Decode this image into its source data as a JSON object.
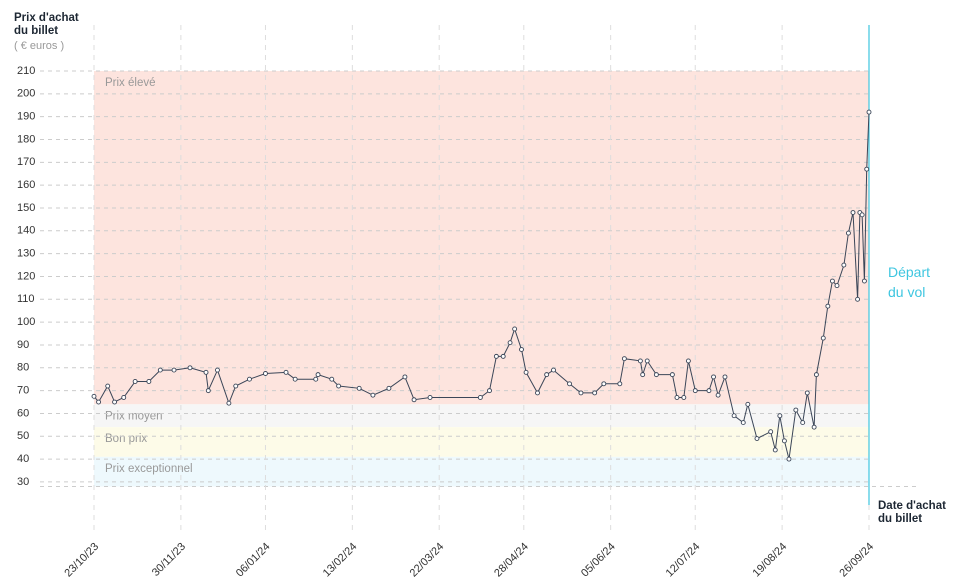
{
  "chart_data": {
    "type": "line",
    "y_label": "Prix d'achat du billet",
    "y_unit": "( € euros )",
    "x_label": "Date d'achat du billet",
    "annotation": "Départ du vol",
    "annotation_color": "#3ec6e0",
    "bands": [
      {
        "name": "Prix élevé",
        "range": [
          64,
          210
        ],
        "color": "#fde4de"
      },
      {
        "name": "Prix moyen",
        "range": [
          54,
          64
        ],
        "color": "#f6f6f6"
      },
      {
        "name": "Bon prix",
        "range": [
          41,
          54
        ],
        "color": "#fdfbe8"
      },
      {
        "name": "Prix exceptionnel",
        "range": [
          28,
          41
        ],
        "color": "#eef9fd"
      }
    ],
    "x": [
      "23/10/23",
      "25/10/23",
      "29/10/23",
      "01/11/23",
      "05/11/23",
      "10/11/23",
      "16/11/23",
      "21/11/23",
      "27/11/23",
      "04/12/23",
      "11/12/23",
      "12/12/23",
      "16/12/23",
      "21/12/23",
      "24/12/23",
      "30/12/23",
      "06/01/24",
      "15/01/24",
      "19/01/24",
      "28/01/24",
      "29/01/24",
      "04/02/24",
      "07/02/24",
      "16/02/24",
      "22/02/24",
      "29/02/24",
      "07/03/24",
      "11/03/24",
      "18/03/24",
      "09/04/24",
      "13/04/24",
      "16/04/24",
      "19/04/24",
      "22/04/24",
      "24/04/24",
      "27/04/24",
      "29/04/24",
      "04/05/24",
      "08/05/24",
      "11/05/24",
      "18/05/24",
      "23/05/24",
      "29/05/24",
      "02/06/24",
      "09/06/24",
      "11/06/24",
      "18/06/24",
      "19/06/24",
      "21/06/24",
      "25/06/24",
      "02/07/24",
      "04/07/24",
      "07/07/24",
      "09/07/24",
      "12/07/24",
      "18/07/24",
      "20/07/24",
      "22/07/24",
      "25/07/24",
      "29/07/24",
      "02/08/24",
      "04/08/24",
      "08/08/24",
      "14/08/24",
      "16/08/24",
      "18/08/24",
      "20/08/24",
      "22/08/24",
      "25/08/24",
      "28/08/24",
      "30/08/24",
      "02/09/24",
      "03/09/24",
      "06/09/24",
      "08/09/24",
      "10/09/24",
      "12/09/24",
      "15/09/24",
      "17/09/24",
      "19/09/24",
      "21/09/24",
      "22/09/24",
      "23/09/24",
      "24/09/24",
      "25/09/24",
      "26/09/24"
    ],
    "series": [
      {
        "color": "#3b4658",
        "values": [
          67.5,
          65,
          72,
          65,
          67,
          74,
          74,
          79,
          79,
          80,
          78,
          70,
          79,
          64.5,
          72,
          75,
          77.5,
          78,
          75,
          75,
          77,
          75,
          72,
          71,
          68,
          71,
          76,
          66,
          67,
          67,
          70,
          85,
          85,
          91,
          97,
          88,
          78,
          69,
          77,
          79,
          73,
          69,
          69,
          73,
          73,
          84,
          83,
          77,
          83,
          77,
          77,
          67,
          67,
          83,
          70,
          70,
          76,
          68,
          76,
          59,
          56,
          64,
          49,
          52,
          44,
          59,
          48,
          40,
          61.5,
          56,
          69,
          54,
          77,
          93,
          107,
          118,
          116,
          125,
          139,
          148,
          110,
          148,
          147,
          118,
          167,
          192
        ]
      }
    ],
    "xlim": [
      "23/10/23",
      "26/09/24"
    ],
    "xticks": [
      "23/10/23",
      "30/11/23",
      "06/01/24",
      "13/02/24",
      "22/03/24",
      "28/04/24",
      "05/06/24",
      "12/07/24",
      "19/08/24",
      "26/09/24"
    ],
    "ylim": [
      28,
      210
    ],
    "yticks": [
      30,
      40,
      50,
      60,
      70,
      80,
      90,
      100,
      110,
      120,
      130,
      140,
      150,
      160,
      170,
      180,
      190,
      200,
      210
    ],
    "grid": true
  }
}
